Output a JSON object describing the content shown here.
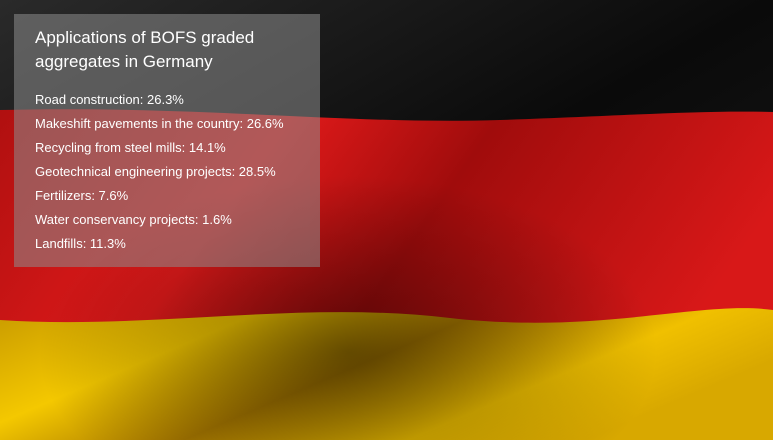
{
  "title": "Applications of BOFS graded aggregates in Germany",
  "items": [
    "Road construction: 26.3%",
    "Makeshift pavements in the country: 26.6%",
    "Recycling from steel mills: 14.1%",
    "Geotechnical engineering projects: 28.5%",
    "Fertilizers: 7.6%",
    "Water conservancy projects: 1.6%",
    "Landfills: 11.3%"
  ]
}
